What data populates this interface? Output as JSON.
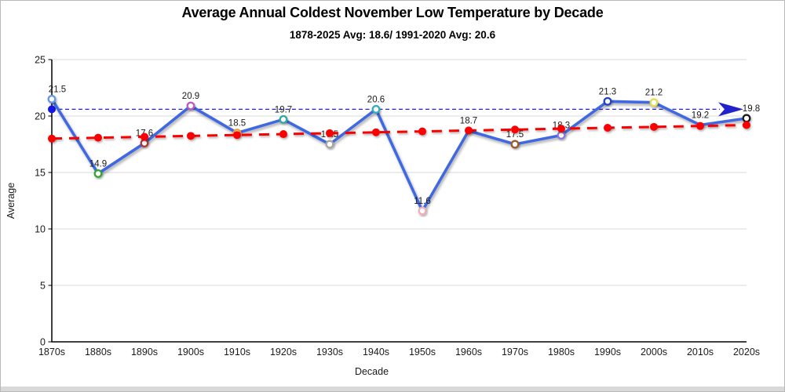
{
  "chart_data": {
    "type": "line",
    "title": "Average Annual Coldest November Low Temperature by Decade",
    "subtitle": "1878-2025 Avg: 18.6/ 1991-2020 Avg: 20.6",
    "xlabel": "Decade",
    "ylabel": "Average",
    "ylim": [
      0,
      25
    ],
    "yticks": [
      0,
      5,
      10,
      15,
      20,
      25
    ],
    "grid": true,
    "legend": "none",
    "categories": [
      "1870s",
      "1880s",
      "1890s",
      "1900s",
      "1910s",
      "1920s",
      "1930s",
      "1940s",
      "1950s",
      "1960s",
      "1970s",
      "1980s",
      "1990s",
      "2000s",
      "2010s",
      "2020s"
    ],
    "series": [
      {
        "name": "decade-average",
        "type": "line",
        "color": "#4169E1",
        "values": [
          21.5,
          14.9,
          17.6,
          20.9,
          18.5,
          19.7,
          17.5,
          20.6,
          11.6,
          18.7,
          17.5,
          18.3,
          21.3,
          21.2,
          19.2,
          19.8
        ],
        "value_labels": [
          "21.5",
          "14.9",
          "17.6",
          "20.9",
          "18.5",
          "19.7",
          "17.5",
          "20.6",
          "11.6",
          "18.7",
          "17.5",
          "18.3",
          "21.3",
          "21.2",
          "19.2",
          "19.8"
        ],
        "marker_style": "open-circle",
        "marker_colors": [
          "#6495ED",
          "#33A532",
          "#B03434",
          "#BE5ABE",
          "#E8A030",
          "#2FA8A0",
          "#A6A6A6",
          "#38ACB8",
          "#F2AEBB",
          null,
          "#9C5B2B",
          "#8878E0",
          "#2040CC",
          "#E0E050",
          null,
          "#1A1A1A"
        ]
      },
      {
        "name": "linear-trend",
        "type": "line",
        "style": "dashed",
        "color": "#FB0000",
        "marker_style": "filled-circle",
        "values": [
          18.0,
          18.08,
          18.16,
          18.24,
          18.32,
          18.4,
          18.48,
          18.56,
          18.64,
          18.72,
          18.8,
          18.88,
          18.96,
          19.04,
          19.12,
          19.2
        ]
      },
      {
        "name": "1991-2020-average-reference",
        "type": "hline",
        "style": "dashed",
        "color": "#2222CC",
        "value": 20.6,
        "start_dot_color": "#1515E6",
        "end_arrow": true
      }
    ],
    "annotations": {
      "overall_avg_1878_2025": 18.6,
      "recent_avg_1991_2020": 20.6
    }
  }
}
